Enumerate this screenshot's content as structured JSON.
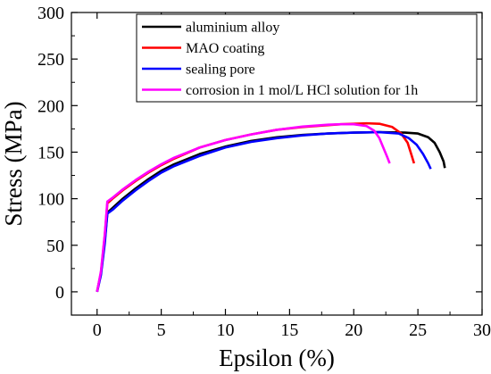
{
  "chart_data": {
    "type": "line",
    "title": "",
    "xlabel": "Epsilon (%)",
    "ylabel": "Stress (MPa)",
    "xlim": [
      -2,
      30
    ],
    "ylim": [
      -25,
      300
    ],
    "xticks": [
      0,
      5,
      10,
      15,
      20,
      25,
      30
    ],
    "yticks": [
      0,
      50,
      100,
      150,
      200,
      250,
      300
    ],
    "legend_position": "top-right",
    "grid": false,
    "series": [
      {
        "name": "aluminium alloy",
        "color": "#000000",
        "x": [
          0,
          0.3,
          0.6,
          0.8,
          1.2,
          2,
          3,
          4,
          5,
          6,
          8,
          10,
          12,
          14,
          16,
          18,
          20,
          22,
          24,
          25,
          25.8,
          26.3,
          26.7,
          27,
          27.1
        ],
        "y": [
          0,
          20,
          55,
          85,
          90,
          100,
          111,
          121,
          130,
          137,
          148,
          156,
          162,
          166,
          168.5,
          170,
          171,
          171.5,
          171,
          170,
          166,
          160,
          150,
          140,
          133
        ]
      },
      {
        "name": "MAO coating",
        "color": "#ff0000",
        "x": [
          0,
          0.3,
          0.6,
          0.8,
          1.2,
          2,
          3,
          4,
          5,
          6,
          8,
          10,
          12,
          14,
          16,
          18,
          19,
          20,
          21,
          22,
          23,
          23.7,
          24.2,
          24.5,
          24.7
        ],
        "y": [
          0,
          20,
          60,
          95,
          100,
          109,
          119,
          128,
          136,
          143,
          155,
          163,
          169,
          174,
          177,
          179,
          180,
          180.5,
          181,
          180.5,
          177,
          170,
          160,
          147,
          138
        ]
      },
      {
        "name": "sealing pore",
        "color": "#0000ff",
        "x": [
          0,
          0.3,
          0.6,
          0.8,
          1.2,
          2,
          3,
          4,
          5,
          6,
          8,
          10,
          12,
          14,
          16,
          18,
          20,
          22,
          23.5,
          24.3,
          24.9,
          25.4,
          25.8,
          26
        ],
        "y": [
          0,
          18,
          52,
          84,
          88,
          98,
          109,
          119,
          128,
          135,
          146,
          155,
          161,
          165,
          168,
          170,
          171,
          171.5,
          170,
          165,
          158,
          148,
          138,
          132
        ]
      },
      {
        "name": "corrosion in 1 mol/L HCl solution for 1h",
        "color": "#ff00ff",
        "x": [
          0,
          0.3,
          0.6,
          0.8,
          1.2,
          2,
          3,
          4,
          5,
          6,
          8,
          10,
          12,
          14,
          16,
          18,
          19,
          20,
          21,
          21.6,
          22,
          22.3,
          22.6,
          22.8
        ],
        "y": [
          0,
          22,
          62,
          97,
          101,
          110,
          120,
          129,
          137,
          144,
          155,
          163,
          169,
          174,
          177.5,
          179.5,
          180,
          180,
          178,
          173,
          165,
          155,
          145,
          138
        ]
      }
    ]
  }
}
